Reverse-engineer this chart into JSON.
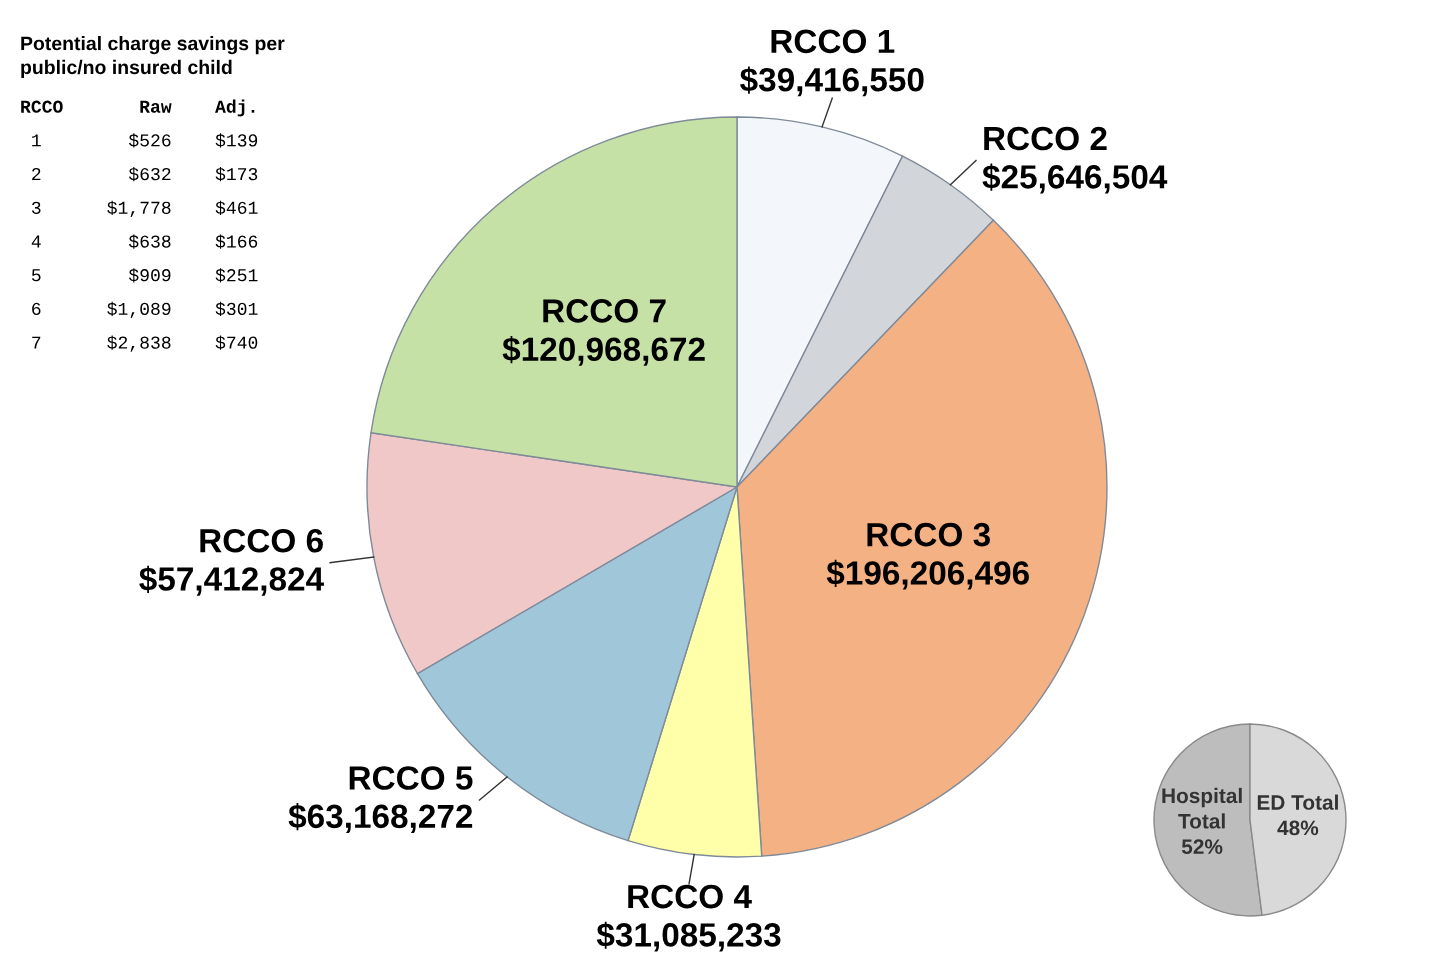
{
  "chart_data": [
    {
      "type": "pie",
      "categories": [
        "RCCO 1",
        "RCCO 2",
        "RCCO 3",
        "RCCO 4",
        "RCCO 5",
        "RCCO 6",
        "RCCO 7"
      ],
      "values": [
        39416550,
        25646504,
        196206496,
        31085233,
        63168272,
        57412824,
        120968672
      ],
      "value_labels": [
        "$39,416,550",
        "$25,646,504",
        "$196,206,496",
        "$31,085,233",
        "$63,168,272",
        "$57,412,824",
        "$120,968,672"
      ],
      "colors": [
        "#f3f6fa",
        "#d2d5da",
        "#f4b183",
        "#ffffaa",
        "#9fc7d9",
        "#f1c8c8",
        "#c6e1a6"
      ]
    },
    {
      "type": "pie",
      "categories": [
        "Hospital\nTotal",
        "ED Total"
      ],
      "values": [
        52,
        48
      ],
      "value_labels": [
        "52%",
        "48%"
      ],
      "colors": [
        "#bdbdbd",
        "#d9d9d9"
      ]
    },
    {
      "type": "other",
      "title": "Potential charge savings per\npublic/no insured child",
      "annotations": [
        "RCCO Raw Adj.",
        "1 $526 $139",
        "2 $632 $173",
        "3 $1,778 $461",
        "4 $638 $166",
        "5 $909 $251",
        "6 $1,089 $301",
        "7 $2,838 $740"
      ]
    }
  ]
}
